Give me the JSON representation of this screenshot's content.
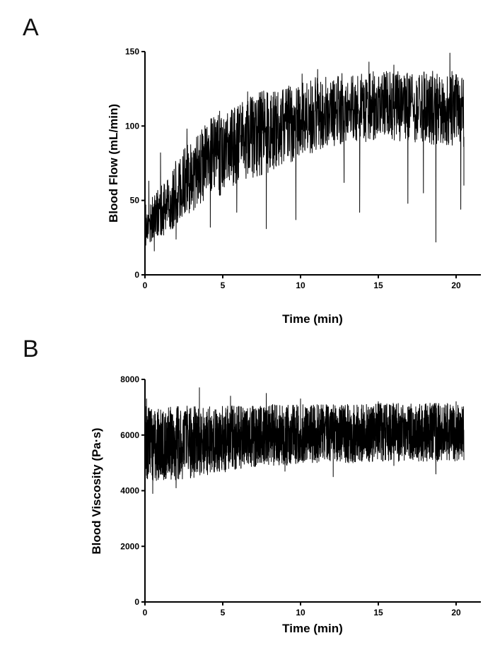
{
  "chart_data": [
    {
      "id": "A",
      "panel_label": "A",
      "type": "line",
      "title": "",
      "xlabel": "Time (min)",
      "ylabel": "Blood Flow (mL/min)",
      "xlim": [
        0,
        21
      ],
      "ylim": [
        0,
        150
      ],
      "xticks": [
        0,
        5,
        10,
        15,
        20
      ],
      "yticks": [
        0,
        50,
        100,
        150
      ],
      "grid": false,
      "legend": "none",
      "series": [
        {
          "trend": {
            "x": [
              0,
              0.5,
              1,
              1.5,
              2,
              2.5,
              3,
              3.5,
              4,
              5,
              6,
              7,
              8,
              9,
              10,
              11,
              12,
              13,
              14,
              15,
              16,
              17,
              18,
              19,
              20,
              20.5
            ],
            "y": [
              30,
              38,
              43,
              47,
              55,
              62,
              67,
              72,
              77,
              82,
              87,
              93,
              97,
              100,
              103,
              108,
              110,
              112,
              113,
              113,
              113,
              113,
              112,
              112,
              112,
              110
            ],
            "spread": [
              13,
              16,
              18,
              20,
              22,
              24,
              25,
              26,
              27,
              28,
              28,
              28,
              28,
              27,
              26,
              25,
              24,
              24,
              24,
              24,
              24,
              24,
              25,
              25,
              25,
              24
            ]
          },
          "values": [
            [
              0.0,
              8
            ],
            [
              0.05,
              47
            ],
            [
              0.25,
              63
            ],
            [
              0.6,
              16
            ],
            [
              1.0,
              82
            ],
            [
              2.0,
              24
            ],
            [
              2.7,
              98
            ],
            [
              4.2,
              32
            ],
            [
              4.8,
              110
            ],
            [
              5.9,
              42
            ],
            [
              6.6,
              123
            ],
            [
              7.8,
              31
            ],
            [
              9.7,
              37
            ],
            [
              10.1,
              135
            ],
            [
              11.1,
              138
            ],
            [
              12.8,
              62
            ],
            [
              13.8,
              42
            ],
            [
              14.4,
              143
            ],
            [
              16.0,
              141
            ],
            [
              16.9,
              48
            ],
            [
              17.9,
              55
            ],
            [
              18.7,
              22
            ],
            [
              19.6,
              149
            ],
            [
              20.3,
              44
            ],
            [
              20.5,
              60
            ]
          ]
        }
      ]
    },
    {
      "id": "B",
      "panel_label": "B",
      "type": "line",
      "title": "",
      "xlabel": "Time (min)",
      "ylabel": "Blood Viscosity (Pa·s)",
      "xlim": [
        0,
        21
      ],
      "ylim": [
        0,
        8000
      ],
      "xticks": [
        0,
        5,
        10,
        15,
        20
      ],
      "yticks": [
        0,
        2000,
        4000,
        6000,
        8000
      ],
      "grid": false,
      "legend": "none",
      "series": [
        {
          "trend": {
            "x": [
              0,
              0.5,
              1,
              2,
              3,
              4,
              5,
              6,
              7,
              8,
              9,
              10,
              11,
              12,
              13,
              14,
              15,
              16,
              17,
              18,
              19,
              20,
              20.5
            ],
            "y": [
              5700,
              5650,
              5650,
              5700,
              5750,
              5800,
              5850,
              5900,
              5950,
              6000,
              6000,
              6050,
              6050,
              6050,
              6050,
              6050,
              6100,
              6100,
              6100,
              6100,
              6100,
              6100,
              6100
            ],
            "spread": [
              1350,
              1300,
              1300,
              1350,
              1300,
              1250,
              1200,
              1150,
              1100,
              1100,
              1100,
              1050,
              1050,
              1050,
              1050,
              1050,
              1050,
              1050,
              1050,
              1050,
              1050,
              1050,
              1000
            ]
          },
          "values": [
            [
              0.0,
              4000
            ],
            [
              0.1,
              7300
            ],
            [
              0.5,
              3900
            ],
            [
              2.0,
              4100
            ],
            [
              3.5,
              7700
            ],
            [
              5.5,
              7400
            ],
            [
              7.8,
              7500
            ],
            [
              9.0,
              4700
            ],
            [
              10.0,
              7300
            ],
            [
              12.1,
              4500
            ],
            [
              15.0,
              7200
            ],
            [
              16.0,
              4900
            ],
            [
              18.7,
              4600
            ],
            [
              20.0,
              7200
            ],
            [
              20.5,
              5100
            ]
          ]
        }
      ]
    }
  ]
}
